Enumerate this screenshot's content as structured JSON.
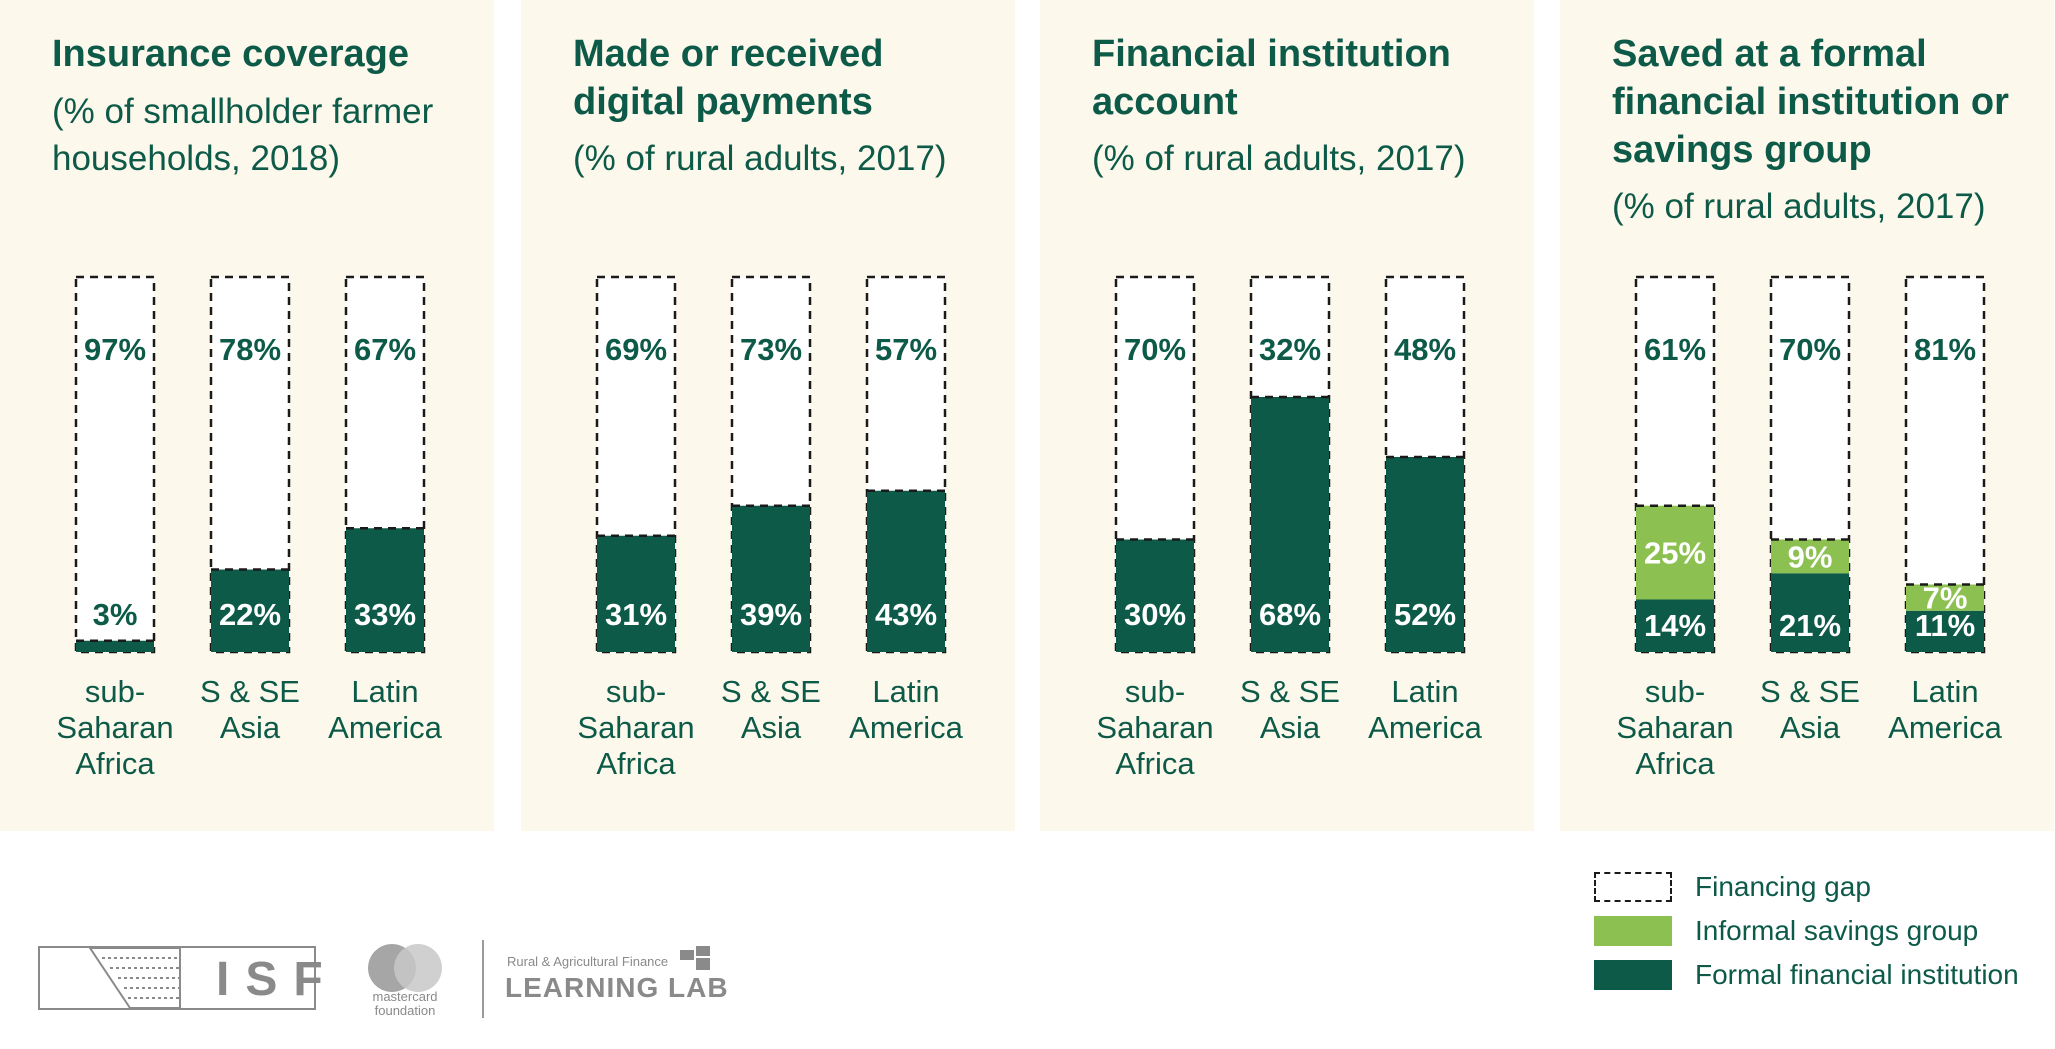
{
  "chart_data": [
    {
      "type": "bar",
      "title": "Insurance coverage",
      "subtitle": "(% of smallholder farmer households, 2018)",
      "categories": [
        "sub-Saharan Africa",
        "S & SE Asia",
        "Latin America"
      ],
      "series": [
        {
          "name": "Formal financial institution",
          "values": [
            3,
            22,
            33
          ],
          "labels": [
            "3%",
            "22%",
            "33%"
          ]
        },
        {
          "name": "Financing gap",
          "values": [
            97,
            78,
            67
          ],
          "labels": [
            "97%",
            "78%",
            "67%"
          ]
        }
      ],
      "ylim": [
        0,
        100
      ]
    },
    {
      "type": "bar",
      "title": "Made or received digital payments",
      "subtitle": "(% of rural adults, 2017)",
      "categories": [
        "sub-Saharan Africa",
        "S & SE Asia",
        "Latin America"
      ],
      "series": [
        {
          "name": "Formal financial institution",
          "values": [
            31,
            39,
            43
          ],
          "labels": [
            "31%",
            "39%",
            "43%"
          ]
        },
        {
          "name": "Financing gap",
          "values": [
            69,
            73,
            57
          ],
          "labels": [
            "69%",
            "73%",
            "57%"
          ]
        }
      ],
      "ylim": [
        0,
        100
      ]
    },
    {
      "type": "bar",
      "title": "Financial institution account",
      "subtitle": "(% of rural adults, 2017)",
      "categories": [
        "sub-Saharan Africa",
        "S & SE Asia",
        "Latin America"
      ],
      "series": [
        {
          "name": "Formal financial institution",
          "values": [
            30,
            68,
            52
          ],
          "labels": [
            "30%",
            "68%",
            "52%"
          ]
        },
        {
          "name": "Financing gap",
          "values": [
            70,
            32,
            48
          ],
          "labels": [
            "70%",
            "32%",
            "48%"
          ]
        }
      ],
      "ylim": [
        0,
        100
      ]
    },
    {
      "type": "bar",
      "title": "Saved at a formal financial institution or savings group",
      "subtitle": "(% of rural adults, 2017)",
      "categories": [
        "sub-Saharan Africa",
        "S & SE Asia",
        "Latin America"
      ],
      "series": [
        {
          "name": "Formal financial institution",
          "values": [
            14,
            21,
            11
          ],
          "labels": [
            "14%",
            "21%",
            "11%"
          ]
        },
        {
          "name": "Informal savings group",
          "values": [
            25,
            9,
            7
          ],
          "labels": [
            "25%",
            "9%",
            "7%"
          ]
        },
        {
          "name": "Financing gap",
          "values": [
            61,
            70,
            81
          ],
          "labels": [
            "61%",
            "70%",
            "81%"
          ]
        }
      ],
      "ylim": [
        0,
        100
      ]
    }
  ],
  "legend": {
    "position": "bottom-right",
    "items": [
      {
        "label": "Financing gap",
        "style": "dashed-outline"
      },
      {
        "label": "Informal savings group",
        "color": "#8cc152"
      },
      {
        "label": "Formal financial institution",
        "color": "#0d5a48"
      }
    ]
  },
  "colors": {
    "formal": "#0d5a48",
    "informal": "#8cc152",
    "panel_background": "#fdf8ec",
    "gap_fill": "#ffffff"
  },
  "logos": {
    "isf": "ISF",
    "mastercard_line1": "mastercard",
    "mastercard_line2": "foundation",
    "lab_small": "Rural & Agricultural Finance",
    "lab_big": "LEARNING LAB"
  }
}
